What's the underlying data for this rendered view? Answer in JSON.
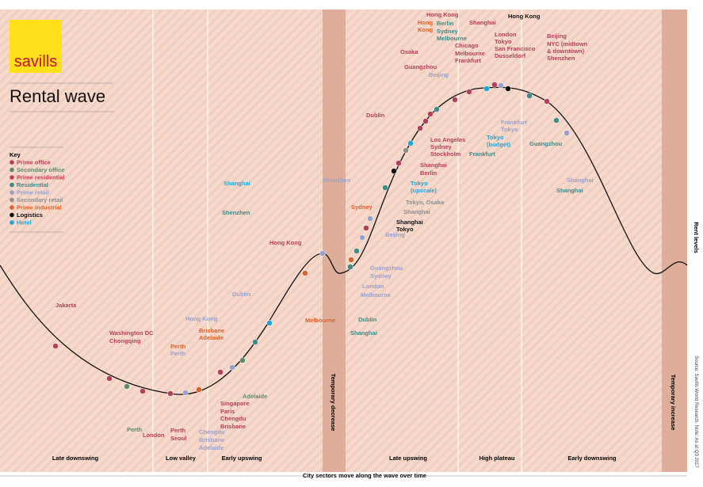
{
  "logo": "savills",
  "title": "Rental wave",
  "key": {
    "title": "Key",
    "items": [
      {
        "label": "Prime office",
        "color": "#b3405a"
      },
      {
        "label": "Secondary office",
        "color": "#5b8c6a"
      },
      {
        "label": "Prime residential",
        "color": "#c33d50"
      },
      {
        "label": "Residential",
        "color": "#3e8a88"
      },
      {
        "label": "Prime retail",
        "color": "#9aa0cc"
      },
      {
        "label": "Secondary retail",
        "color": "#8e8e8e"
      },
      {
        "label": "Prime industrial",
        "color": "#d9622b"
      },
      {
        "label": "Logistics",
        "color": "#111111"
      },
      {
        "label": "Hotel",
        "color": "#1fa6d8"
      }
    ]
  },
  "phases": [
    "Late downswing",
    "Low valley",
    "Early upswing",
    "Temporary decrease",
    "Late upswing",
    "High plateau",
    "Early downswing",
    "Temporary increase"
  ],
  "y_axis_label": "Rent levels",
  "x_axis_label": "City sectors move along the wave over time",
  "source": "Source: Savills World Research. Note: As at Q3 2017",
  "labels": [
    "Jakarta",
    "Washington DC",
    "Chongqing",
    "Perth",
    "London",
    "Perth",
    "Perth",
    "Perth",
    "Seoul",
    "Hong Kong",
    "Brisbane",
    "Adelaide",
    "Chengdu",
    "Brisbane",
    "Adelaide",
    "Singapore",
    "Paris",
    "Chengdu",
    "Brisbane",
    "Adelaide",
    "Dublin",
    "Shenzhen",
    "Shanghai",
    "Hong Kong",
    "Melbourne",
    "Shenzhen",
    "Sydney",
    "Dublin",
    "Shanghai",
    "London",
    "Melbourne",
    "Guangzhou",
    "Sydney",
    "Beijing",
    "Dublin",
    "Shanghai",
    "Tokyo",
    "Shanghai",
    "Tokyo, Osaka",
    "Tokyo",
    "(upscale)",
    "Shanghai",
    "Berlin",
    "Los Angeles",
    "Sydney",
    "Stockholm",
    "Osaka",
    "Guangzhou",
    "Hong",
    "Kong",
    "Beijing",
    "Hong Kong",
    "Berlin",
    "Sydney",
    "Melbourne",
    "Chicago",
    "Melbourne",
    "Frankfurt",
    "Shanghai",
    "Tokyo",
    "(budget)",
    "Frankfurt",
    "Hong Kong",
    "London",
    "Tokyo",
    "San Francisco",
    "Dusseldorf",
    "Frankfurt",
    "Tokyo",
    "Guangzhou",
    "Beijing",
    "NYC (midtown",
    "& downtown)",
    "Shenzhen",
    "Shanghai",
    "Shanghai"
  ]
}
